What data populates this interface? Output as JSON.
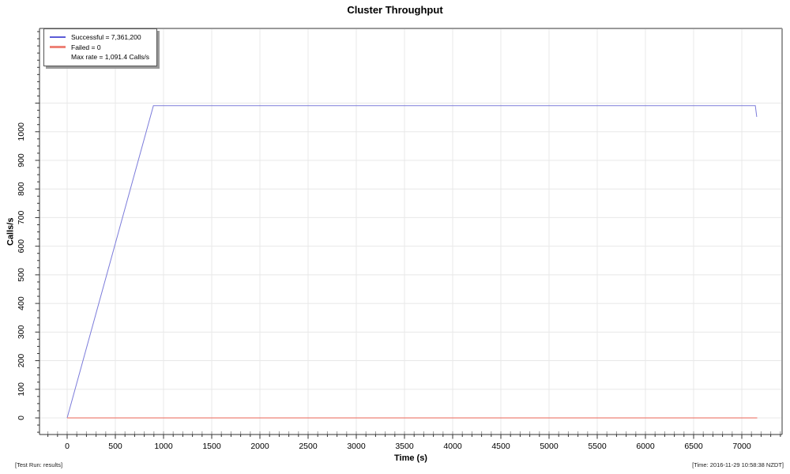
{
  "title": "Cluster Throughput",
  "footer": {
    "left": "[Test Run: results]",
    "right": "[Time: 2016-11-29 10:58:38 NZDT]"
  },
  "chart_data": {
    "type": "line",
    "title": "Cluster Throughput",
    "xlabel": "Time (s)",
    "ylabel": "Calls/s",
    "xlim": [
      -287,
      7418
    ],
    "ylim": [
      -58,
      1361
    ],
    "grid": true,
    "colors": {
      "grid": "#e8e8e8",
      "axis": "#333333",
      "border": "#9a9a9a",
      "inner_tick": "#999999",
      "background": "#ffffff"
    },
    "x_axis": {
      "ticks": [
        0,
        500,
        1000,
        1500,
        2000,
        2500,
        3000,
        3500,
        4000,
        4500,
        5000,
        5500,
        6000,
        6500,
        7000
      ],
      "minor": {
        "step": 100,
        "from": -200,
        "to": 7400
      }
    },
    "y_axis": {
      "ticks": [
        0,
        100,
        200,
        300,
        400,
        500,
        600,
        700,
        800,
        900,
        1000
      ],
      "major_ticks": [
        0,
        100,
        200,
        300,
        400,
        500,
        600,
        700,
        800,
        900,
        1000,
        1100
      ],
      "minor": {
        "step": 25,
        "from": -50,
        "to": 1350
      }
    },
    "legend": {
      "position": "top-left",
      "entries": [
        {
          "label": "Successful = 7,361,200",
          "color": "#5b5bd6",
          "swatch": true,
          "swatch_height": 2
        },
        {
          "label": "Failed = 0",
          "color": "#ee8277",
          "swatch": true,
          "swatch_height": 3
        },
        {
          "label": "Max rate = 1,091.4 Calls/s",
          "color": null,
          "swatch": false,
          "swatch_height": 0
        }
      ]
    },
    "series": [
      {
        "name": "Successful",
        "color": "#7b7bda",
        "line_width": 1,
        "points": [
          [
            0,
            0
          ],
          [
            895,
            1091.4
          ],
          [
            7140,
            1091.4
          ],
          [
            7155,
            1052
          ]
        ]
      },
      {
        "name": "Failed",
        "color": "#ee8277",
        "line_width": 1.3,
        "points": [
          [
            0,
            0
          ],
          [
            7160,
            0
          ]
        ]
      }
    ],
    "stats": {
      "successful_total": "7,361,200",
      "failed_total": "0",
      "max_rate_calls_per_s": 1091.4
    }
  }
}
